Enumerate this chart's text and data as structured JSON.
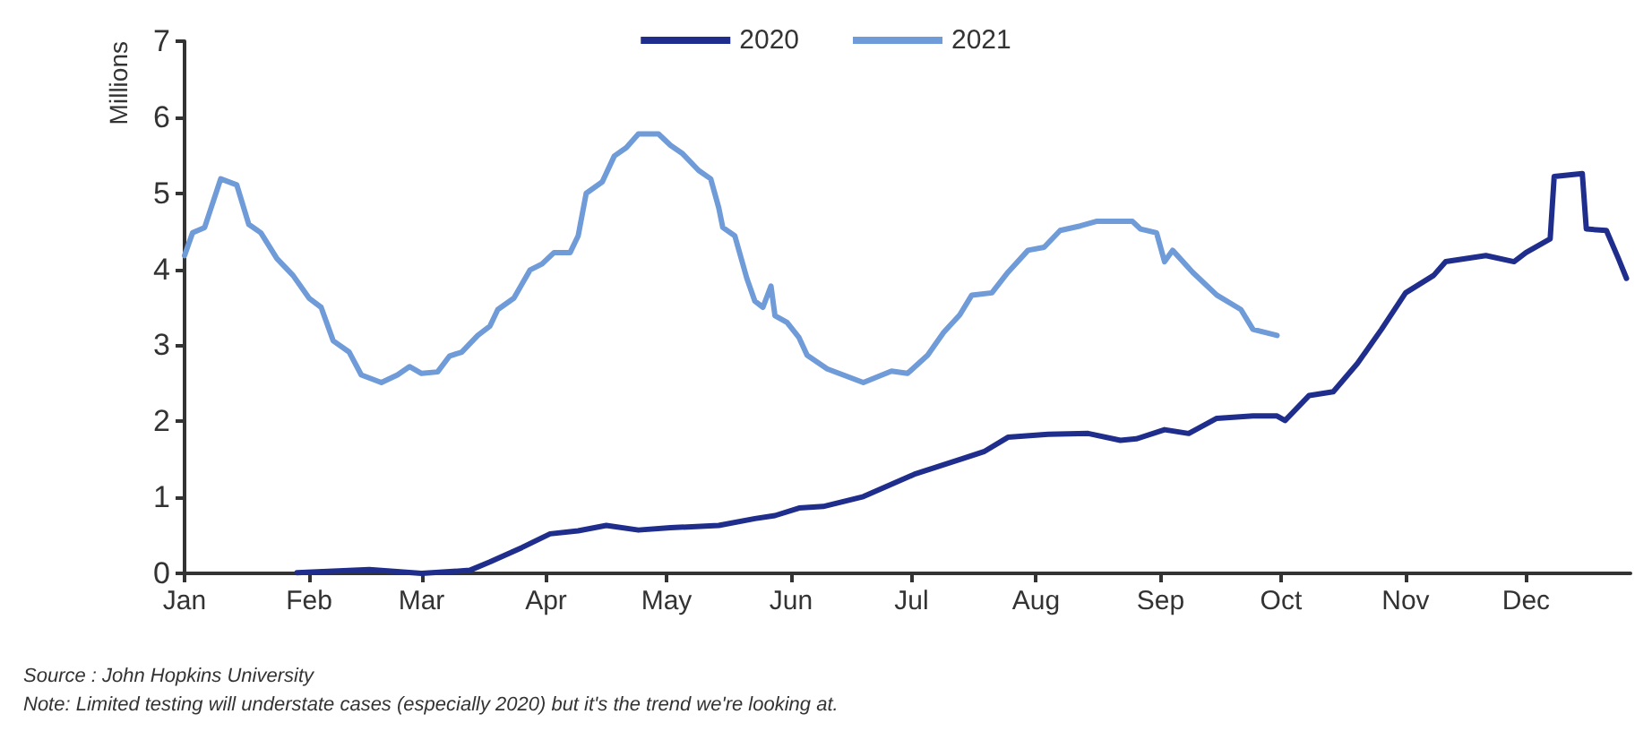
{
  "chart_data": {
    "type": "line",
    "ylabel": "Millions",
    "legend": "top",
    "grid": false,
    "marker": "none",
    "line_style": "solid",
    "xlim": [
      "--01-01",
      "--12-27"
    ],
    "ylim": [
      0,
      7
    ],
    "yticks": [
      0,
      1,
      2,
      3,
      4,
      5,
      6,
      7
    ],
    "xticks": [
      {
        "value": "--01-01",
        "label": "Jan"
      },
      {
        "value": "--02-01",
        "label": "Feb"
      },
      {
        "value": "--03-01",
        "label": "Mar"
      },
      {
        "value": "--04-01",
        "label": "Apr"
      },
      {
        "value": "--05-01",
        "label": "May"
      },
      {
        "value": "--06-01",
        "label": "Jun"
      },
      {
        "value": "--07-01",
        "label": "Jul"
      },
      {
        "value": "--08-01",
        "label": "Aug"
      },
      {
        "value": "--09-01",
        "label": "Sep"
      },
      {
        "value": "--10-01",
        "label": "Oct"
      },
      {
        "value": "--11-01",
        "label": "Nov"
      },
      {
        "value": "--12-01",
        "label": "Dec"
      }
    ],
    "series": [
      {
        "name": "2020",
        "color": "#1f2e8c",
        "x": [
          "--01-29",
          "--02-16",
          "--03-01",
          "--03-13",
          "--03-18",
          "--03-26",
          "--04-02",
          "--04-09",
          "--04-16",
          "--04-24",
          "--05-02",
          "--05-14",
          "--05-23",
          "--05-28",
          "--06-03",
          "--06-09",
          "--06-19",
          "--07-02",
          "--07-19",
          "--07-25",
          "--08-04",
          "--08-14",
          "--08-22",
          "--08-26",
          "--09-02",
          "--09-08",
          "--09-15",
          "--09-24",
          "--09-30",
          "--10-02",
          "--10-08",
          "--10-14",
          "--10-20",
          "--10-26",
          "--11-01",
          "--11-08",
          "--11-11",
          "--11-21",
          "--11-28",
          "--12-01",
          "--12-07",
          "--12-08",
          "--12-15",
          "--12-16",
          "--12-21",
          "--12-24",
          "--12-26"
        ],
        "values": [
          0.01,
          0.05,
          0.0,
          0.04,
          0.15,
          0.34,
          0.52,
          0.56,
          0.63,
          0.57,
          0.6,
          0.63,
          0.72,
          0.76,
          0.86,
          0.88,
          1.01,
          1.31,
          1.6,
          1.79,
          1.83,
          1.84,
          1.75,
          1.77,
          1.89,
          1.84,
          2.04,
          2.07,
          2.07,
          2.01,
          2.34,
          2.39,
          2.76,
          3.21,
          3.69,
          3.92,
          4.1,
          4.18,
          4.1,
          4.22,
          4.4,
          5.22,
          5.26,
          4.53,
          4.51,
          4.14,
          3.88
        ]
      },
      {
        "name": "2021",
        "color": "#6f9bd8",
        "x": [
          "--01-01",
          "--01-03",
          "--01-06",
          "--01-10",
          "--01-14",
          "--01-17",
          "--01-20",
          "--01-24",
          "--01-28",
          "--02-01",
          "--02-04",
          "--02-07",
          "--02-11",
          "--02-14",
          "--02-19",
          "--02-23",
          "--02-26",
          "--03-01",
          "--03-05",
          "--03-08",
          "--03-11",
          "--03-15",
          "--03-18",
          "--03-20",
          "--03-24",
          "--03-28",
          "--03-31",
          "--04-03",
          "--04-07",
          "--04-09",
          "--04-11",
          "--04-15",
          "--04-18",
          "--04-21",
          "--04-24",
          "--04-29",
          "--05-02",
          "--05-05",
          "--05-09",
          "--05-12",
          "--05-14",
          "--05-15",
          "--05-18",
          "--05-21",
          "--05-23",
          "--05-25",
          "--05-27",
          "--05-28",
          "--05-31",
          "--06-03",
          "--06-05",
          "--06-10",
          "--06-19",
          "--06-26",
          "--06-30",
          "--07-05",
          "--07-09",
          "--07-13",
          "--07-16",
          "--07-21",
          "--07-25",
          "--07-30",
          "--08-03",
          "--08-07",
          "--08-12",
          "--08-16",
          "--08-25",
          "--08-27",
          "--08-31",
          "--09-02",
          "--09-04",
          "--09-09",
          "--09-15",
          "--09-21",
          "--09-24",
          "--09-30"
        ],
        "values": [
          4.18,
          4.48,
          4.55,
          5.19,
          5.11,
          4.59,
          4.48,
          4.14,
          3.92,
          3.62,
          3.5,
          3.06,
          2.91,
          2.61,
          2.51,
          2.61,
          2.72,
          2.63,
          2.65,
          2.86,
          2.91,
          3.13,
          3.25,
          3.47,
          3.62,
          3.99,
          4.07,
          4.22,
          4.22,
          4.44,
          5.0,
          5.15,
          5.49,
          5.6,
          5.78,
          5.78,
          5.63,
          5.52,
          5.3,
          5.19,
          4.81,
          4.55,
          4.44,
          3.88,
          3.58,
          3.5,
          3.78,
          3.39,
          3.3,
          3.1,
          2.87,
          2.69,
          2.51,
          2.66,
          2.63,
          2.87,
          3.17,
          3.4,
          3.66,
          3.69,
          3.96,
          4.25,
          4.29,
          4.51,
          4.57,
          4.63,
          4.63,
          4.53,
          4.48,
          4.1,
          4.25,
          3.96,
          3.66,
          3.47,
          3.21,
          3.13
        ]
      }
    ],
    "annotations": [
      "Source : John Hopkins University",
      "Note: Limited testing will understate cases (especially 2020) but it's the trend we're looking at."
    ]
  }
}
